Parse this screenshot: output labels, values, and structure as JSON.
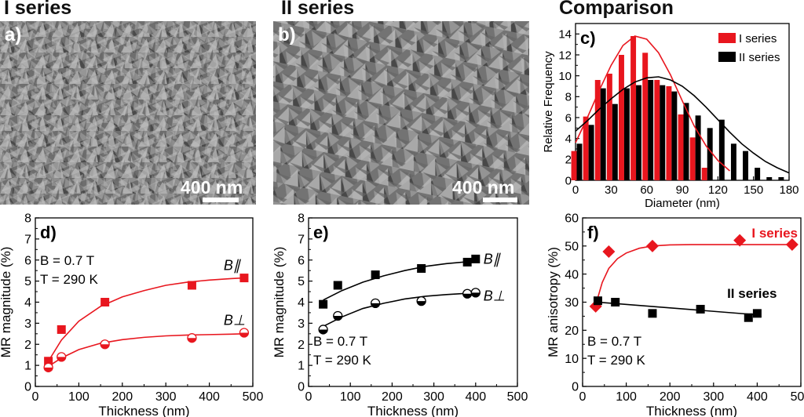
{
  "headers": {
    "i_series": "I series",
    "ii_series": "II series",
    "comparison": "Comparison"
  },
  "sem_a": {
    "letter": "a)",
    "scalebar": "400 nm"
  },
  "sem_b": {
    "letter": "b)",
    "scalebar": "400 nm"
  },
  "colors": {
    "red": "#e8161e",
    "black": "#000000"
  },
  "chart_data": [
    {
      "id": "c",
      "type": "bar",
      "letter": "c)",
      "xlabel": "Diameter (nm)",
      "ylabel": "Relative Frequency",
      "xlim": [
        0,
        180
      ],
      "ylim": [
        0,
        15
      ],
      "xticks": [
        0,
        30,
        60,
        90,
        120,
        150,
        180
      ],
      "yticks": [
        0,
        2,
        4,
        6,
        8,
        10,
        12,
        14
      ],
      "legend": [
        "I series",
        "II series"
      ],
      "bar_centers": [
        1,
        11,
        21,
        31,
        41,
        51,
        61,
        71,
        81,
        91,
        101,
        111,
        121,
        131,
        141,
        151,
        161,
        171
      ],
      "series": [
        {
          "name": "I series",
          "color": "#e8161e",
          "values": [
            2.8,
            6.1,
            9.6,
            10.2,
            12.0,
            13.8,
            12.2,
            9.6,
            9.0,
            6.3,
            4.1,
            1.2,
            0,
            0,
            0,
            0,
            0,
            0
          ]
        },
        {
          "name": "II series",
          "color": "#000000",
          "values": [
            3.5,
            5.3,
            8.8,
            7.3,
            8.8,
            9.1,
            9.6,
            9.1,
            8.5,
            7.4,
            6.2,
            5.0,
            5.8,
            3.5,
            2.8,
            1.2,
            0.3,
            0.3
          ]
        }
      ],
      "fits": [
        {
          "name": "I series fit",
          "color": "#e8161e",
          "x": [
            0,
            10,
            20,
            30,
            40,
            50,
            60,
            70,
            80,
            90,
            100,
            110,
            120,
            130
          ],
          "y": [
            3.6,
            6.0,
            8.6,
            11.0,
            12.9,
            13.8,
            13.5,
            12.2,
            10.1,
            7.6,
            5.2,
            3.3,
            1.9,
            0.9
          ]
        },
        {
          "name": "II series fit",
          "color": "#000000",
          "x": [
            0,
            10,
            20,
            30,
            40,
            50,
            60,
            70,
            80,
            90,
            100,
            110,
            120,
            130,
            140,
            150,
            160,
            170,
            180
          ],
          "y": [
            4.7,
            5.7,
            6.8,
            7.8,
            8.7,
            9.4,
            9.8,
            9.9,
            9.6,
            9.0,
            8.1,
            7.0,
            5.8,
            4.6,
            3.5,
            2.6,
            1.8,
            1.2,
            0.7
          ]
        }
      ]
    },
    {
      "id": "d",
      "type": "scatter",
      "letter": "d)",
      "xlabel": "Thickness (nm)",
      "ylabel": "MR magnitude (%)",
      "xlim": [
        0,
        500
      ],
      "ylim": [
        0,
        8
      ],
      "xticks": [
        0,
        100,
        200,
        300,
        400,
        500
      ],
      "yticks": [
        0,
        1,
        2,
        3,
        4,
        5,
        6,
        7,
        8
      ],
      "annotation_b": "B = 0.7 T",
      "annotation_t": "T = 290 K",
      "series": [
        {
          "name": "B∥",
          "marker": "square",
          "color": "#e8161e",
          "x": [
            30,
            60,
            160,
            360,
            480
          ],
          "y": [
            1.2,
            2.7,
            4.0,
            4.8,
            5.15
          ]
        },
        {
          "name": "B⊥",
          "marker": "half-circle",
          "color": "#e8161e",
          "x": [
            30,
            60,
            160,
            360,
            480
          ],
          "y": [
            0.9,
            1.4,
            2.0,
            2.3,
            2.55
          ]
        }
      ],
      "fits": [
        {
          "color": "#e8161e",
          "x": [
            30,
            60,
            100,
            150,
            200,
            250,
            300,
            350,
            400,
            450,
            480
          ],
          "y": [
            1.2,
            2.2,
            3.1,
            3.8,
            4.25,
            4.55,
            4.8,
            4.95,
            5.05,
            5.12,
            5.15
          ]
        },
        {
          "color": "#e8161e",
          "x": [
            30,
            60,
            100,
            150,
            200,
            250,
            300,
            350,
            400,
            450,
            480
          ],
          "y": [
            0.95,
            1.35,
            1.75,
            2.05,
            2.22,
            2.33,
            2.4,
            2.44,
            2.46,
            2.48,
            2.5
          ]
        }
      ]
    },
    {
      "id": "e",
      "type": "scatter",
      "letter": "e)",
      "xlabel": "Thickness (nm)",
      "ylabel": "MR magnitude (%)",
      "xlim": [
        0,
        500
      ],
      "ylim": [
        0,
        8
      ],
      "xticks": [
        0,
        100,
        200,
        300,
        400,
        500
      ],
      "yticks": [
        0,
        1,
        2,
        3,
        4,
        5,
        6,
        7,
        8
      ],
      "annotation_b": "B = 0.7 T",
      "annotation_t": "T = 290 K",
      "series": [
        {
          "name": "B∥",
          "marker": "square",
          "color": "#000000",
          "x": [
            35,
            70,
            160,
            270,
            380,
            400
          ],
          "y": [
            3.9,
            4.8,
            5.3,
            5.6,
            5.9,
            6.05
          ]
        },
        {
          "name": "B⊥",
          "marker": "half-circle",
          "color": "#000000",
          "x": [
            35,
            70,
            160,
            270,
            380,
            400
          ],
          "y": [
            2.7,
            3.35,
            3.95,
            4.05,
            4.4,
            4.45
          ]
        }
      ],
      "fits": [
        {
          "color": "#000000",
          "x": [
            35,
            80,
            130,
            180,
            230,
            280,
            330,
            380,
            400
          ],
          "y": [
            4.1,
            4.55,
            4.95,
            5.25,
            5.5,
            5.7,
            5.83,
            5.92,
            5.95
          ]
        },
        {
          "color": "#000000",
          "x": [
            35,
            80,
            130,
            180,
            230,
            280,
            330,
            380,
            400
          ],
          "y": [
            2.85,
            3.3,
            3.7,
            3.95,
            4.15,
            4.28,
            4.36,
            4.42,
            4.43
          ]
        }
      ]
    },
    {
      "id": "f",
      "type": "scatter",
      "letter": "f)",
      "xlabel": "Thickness (nm)",
      "ylabel": "MR anisotropy (%)",
      "xlim": [
        0,
        500
      ],
      "ylim": [
        0,
        60
      ],
      "xticks": [
        0,
        100,
        200,
        300,
        400,
        500
      ],
      "yticks": [
        0,
        10,
        20,
        30,
        40,
        50,
        60
      ],
      "annotation_b": "B = 0.7 T",
      "annotation_t": "T = 290 K",
      "series": [
        {
          "name": "I series",
          "marker": "diamond",
          "color": "#e8161e",
          "x": [
            30,
            60,
            160,
            360,
            480
          ],
          "y": [
            28.5,
            48,
            50,
            52,
            50.5
          ]
        },
        {
          "name": "II series",
          "marker": "square",
          "color": "#000000",
          "x": [
            35,
            75,
            160,
            270,
            380,
            400
          ],
          "y": [
            30.5,
            30,
            26,
            27.5,
            24.5,
            26
          ]
        }
      ],
      "fits": [
        {
          "color": "#e8161e",
          "x": [
            30,
            45,
            60,
            80,
            100,
            130,
            160,
            200,
            250,
            300,
            400,
            480
          ],
          "y": [
            29,
            37,
            42,
            45.5,
            47.5,
            49.2,
            50,
            50.4,
            50.5,
            50.5,
            50.5,
            50.5
          ]
        },
        {
          "color": "#000000",
          "x": [
            35,
            400
          ],
          "y": [
            30,
            25.5
          ]
        }
      ]
    }
  ]
}
